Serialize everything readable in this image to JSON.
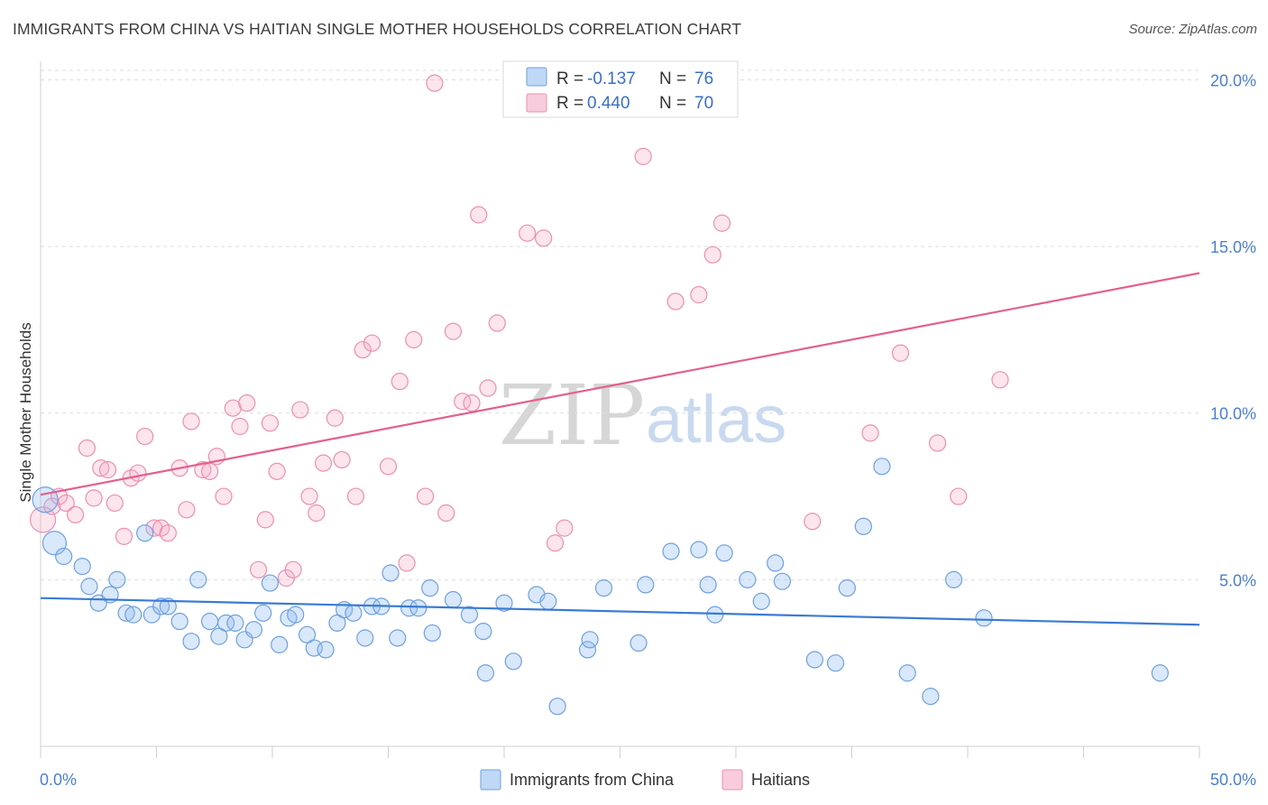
{
  "chart_data": {
    "type": "scatter",
    "title": "IMMIGRANTS FROM CHINA VS HAITIAN SINGLE MOTHER HOUSEHOLDS CORRELATION CHART",
    "source": "Source: ZipAtlas.com",
    "ylabel": "Single Mother Households",
    "xlim": [
      0,
      50
    ],
    "ylim": [
      0,
      20.5
    ],
    "x_tick_labels": [
      "0.0%",
      "50.0%"
    ],
    "y_ticks": [
      5,
      10,
      15,
      20
    ],
    "y_tick_labels": [
      "5.0%",
      "10.0%",
      "15.0%",
      "20.0%"
    ],
    "watermark": {
      "zip": "ZIP",
      "atlas": "atlas"
    },
    "legend_top": [
      {
        "r_label": "R = ",
        "r_value": "-0.137",
        "n_label": "N = ",
        "n_value": "76",
        "color": "#93bef0"
      },
      {
        "r_label": "R = ",
        "r_value": "0.440",
        "n_label": "N = ",
        "n_value": "70",
        "color": "#f4aac4"
      }
    ],
    "series": [
      {
        "name": "Immigrants from China",
        "color": "#93bef0",
        "line_color": "#3a7bd5",
        "trend": {
          "x0": 0,
          "y0": 4.45,
          "x1": 50,
          "y1": 3.65
        },
        "points": [
          [
            0.2,
            7.4,
            14
          ],
          [
            0.6,
            6.1,
            13
          ],
          [
            1.0,
            5.7,
            9
          ],
          [
            1.8,
            5.4,
            9
          ],
          [
            2.1,
            4.8,
            9
          ],
          [
            2.5,
            4.3,
            9
          ],
          [
            3.0,
            4.55,
            9
          ],
          [
            3.3,
            5.0,
            9
          ],
          [
            3.7,
            4.0,
            9
          ],
          [
            4.0,
            3.95,
            9
          ],
          [
            4.5,
            6.4,
            9
          ],
          [
            4.8,
            3.95,
            9
          ],
          [
            5.2,
            4.2,
            9
          ],
          [
            5.5,
            4.2,
            9
          ],
          [
            6.0,
            3.75,
            9
          ],
          [
            6.5,
            3.15,
            9
          ],
          [
            6.8,
            5.0,
            9
          ],
          [
            7.3,
            3.75,
            9
          ],
          [
            7.7,
            3.3,
            9
          ],
          [
            8.0,
            3.7,
            9
          ],
          [
            8.4,
            3.7,
            9
          ],
          [
            8.8,
            3.2,
            9
          ],
          [
            9.2,
            3.5,
            9
          ],
          [
            9.6,
            4.0,
            9
          ],
          [
            9.9,
            4.9,
            9
          ],
          [
            10.3,
            3.05,
            9
          ],
          [
            10.7,
            3.85,
            9
          ],
          [
            11.0,
            3.95,
            9
          ],
          [
            11.5,
            3.35,
            9
          ],
          [
            11.8,
            2.95,
            9
          ],
          [
            12.3,
            2.9,
            9
          ],
          [
            12.8,
            3.7,
            9
          ],
          [
            13.1,
            4.1,
            9
          ],
          [
            13.5,
            4.0,
            9
          ],
          [
            14.0,
            3.25,
            9
          ],
          [
            14.3,
            4.2,
            9
          ],
          [
            14.7,
            4.2,
            9
          ],
          [
            15.1,
            5.2,
            9
          ],
          [
            15.4,
            3.25,
            9
          ],
          [
            15.9,
            4.15,
            9
          ],
          [
            16.3,
            4.15,
            9
          ],
          [
            16.8,
            4.75,
            9
          ],
          [
            16.9,
            3.4,
            9
          ],
          [
            17.8,
            4.4,
            9
          ],
          [
            18.5,
            3.95,
            9
          ],
          [
            19.1,
            3.45,
            9
          ],
          [
            19.2,
            2.2,
            9
          ],
          [
            20.0,
            4.3,
            9
          ],
          [
            20.4,
            2.55,
            9
          ],
          [
            21.4,
            4.55,
            9
          ],
          [
            21.9,
            4.35,
            9
          ],
          [
            22.3,
            1.2,
            9
          ],
          [
            23.6,
            2.9,
            9
          ],
          [
            23.7,
            3.2,
            9
          ],
          [
            24.3,
            4.75,
            9
          ],
          [
            25.8,
            3.1,
            9
          ],
          [
            26.1,
            4.85,
            9
          ],
          [
            27.2,
            5.85,
            9
          ],
          [
            28.4,
            5.9,
            9
          ],
          [
            28.8,
            4.85,
            9
          ],
          [
            29.1,
            3.95,
            9
          ],
          [
            29.5,
            5.8,
            9
          ],
          [
            30.5,
            5.0,
            9
          ],
          [
            31.1,
            4.35,
            9
          ],
          [
            31.7,
            5.5,
            9
          ],
          [
            32.0,
            4.95,
            9
          ],
          [
            33.4,
            2.6,
            9
          ],
          [
            34.3,
            2.5,
            9
          ],
          [
            34.8,
            4.75,
            9
          ],
          [
            35.5,
            6.6,
            9
          ],
          [
            36.3,
            8.4,
            9
          ],
          [
            37.4,
            2.2,
            9
          ],
          [
            38.4,
            1.5,
            9
          ],
          [
            39.4,
            5.0,
            9
          ],
          [
            40.7,
            3.85,
            9
          ],
          [
            48.3,
            2.2,
            9
          ]
        ]
      },
      {
        "name": "Haitians",
        "color": "#f4aac4",
        "line_color": "#e2608e",
        "trend": {
          "x0": 0,
          "y0": 7.55,
          "x1": 50,
          "y1": 14.2
        },
        "points": [
          [
            0.1,
            6.8,
            14
          ],
          [
            0.5,
            7.2,
            9
          ],
          [
            0.8,
            7.5,
            9
          ],
          [
            1.1,
            7.3,
            9
          ],
          [
            1.5,
            6.95,
            9
          ],
          [
            2.0,
            8.95,
            9
          ],
          [
            2.3,
            7.45,
            9
          ],
          [
            2.6,
            8.35,
            9
          ],
          [
            2.9,
            8.3,
            9
          ],
          [
            3.2,
            7.3,
            9
          ],
          [
            3.6,
            6.3,
            9
          ],
          [
            3.9,
            8.05,
            9
          ],
          [
            4.2,
            8.2,
            9
          ],
          [
            4.5,
            9.3,
            9
          ],
          [
            4.9,
            6.55,
            9
          ],
          [
            5.2,
            6.55,
            9
          ],
          [
            5.5,
            6.4,
            9
          ],
          [
            6.0,
            8.35,
            9
          ],
          [
            6.3,
            7.1,
            9
          ],
          [
            6.5,
            9.75,
            9
          ],
          [
            7.0,
            8.3,
            9
          ],
          [
            7.3,
            8.25,
            9
          ],
          [
            7.6,
            8.7,
            9
          ],
          [
            7.9,
            7.5,
            9
          ],
          [
            8.3,
            10.15,
            9
          ],
          [
            8.6,
            9.6,
            9
          ],
          [
            8.9,
            10.3,
            9
          ],
          [
            9.4,
            5.3,
            9
          ],
          [
            9.7,
            6.8,
            9
          ],
          [
            9.9,
            9.7,
            9
          ],
          [
            10.2,
            8.25,
            9
          ],
          [
            10.6,
            5.05,
            9
          ],
          [
            10.9,
            5.3,
            9
          ],
          [
            11.2,
            10.1,
            9
          ],
          [
            11.6,
            7.5,
            9
          ],
          [
            11.9,
            7.0,
            9
          ],
          [
            12.2,
            8.5,
            9
          ],
          [
            12.7,
            9.85,
            9
          ],
          [
            13.0,
            8.6,
            9
          ],
          [
            13.6,
            7.5,
            9
          ],
          [
            13.9,
            11.9,
            9
          ],
          [
            14.3,
            12.1,
            9
          ],
          [
            15.0,
            8.4,
            9
          ],
          [
            15.5,
            10.95,
            9
          ],
          [
            15.8,
            5.5,
            9
          ],
          [
            16.1,
            12.2,
            9
          ],
          [
            16.6,
            7.5,
            9
          ],
          [
            17.0,
            19.9,
            9
          ],
          [
            17.5,
            7.0,
            9
          ],
          [
            17.8,
            12.45,
            9
          ],
          [
            18.2,
            10.35,
            9
          ],
          [
            18.6,
            10.3,
            9
          ],
          [
            18.9,
            15.95,
            9
          ],
          [
            19.3,
            10.75,
            9
          ],
          [
            19.7,
            12.7,
            9
          ],
          [
            21.0,
            15.4,
            9
          ],
          [
            21.7,
            15.25,
            9
          ],
          [
            22.2,
            6.1,
            9
          ],
          [
            22.6,
            6.55,
            9
          ],
          [
            26.0,
            17.7,
            9
          ],
          [
            27.4,
            13.35,
            9
          ],
          [
            28.4,
            13.55,
            9
          ],
          [
            29.0,
            14.75,
            9
          ],
          [
            29.4,
            15.7,
            9
          ],
          [
            33.3,
            6.75,
            9
          ],
          [
            35.8,
            9.4,
            9
          ],
          [
            37.1,
            11.8,
            9
          ],
          [
            38.7,
            9.1,
            9
          ],
          [
            39.6,
            7.5,
            9
          ],
          [
            41.4,
            11.0,
            9
          ]
        ]
      }
    ]
  },
  "legend_bottom": [
    {
      "label": "Immigrants from China",
      "color": "#93bef0"
    },
    {
      "label": "Haitians",
      "color": "#f4aac4"
    }
  ]
}
